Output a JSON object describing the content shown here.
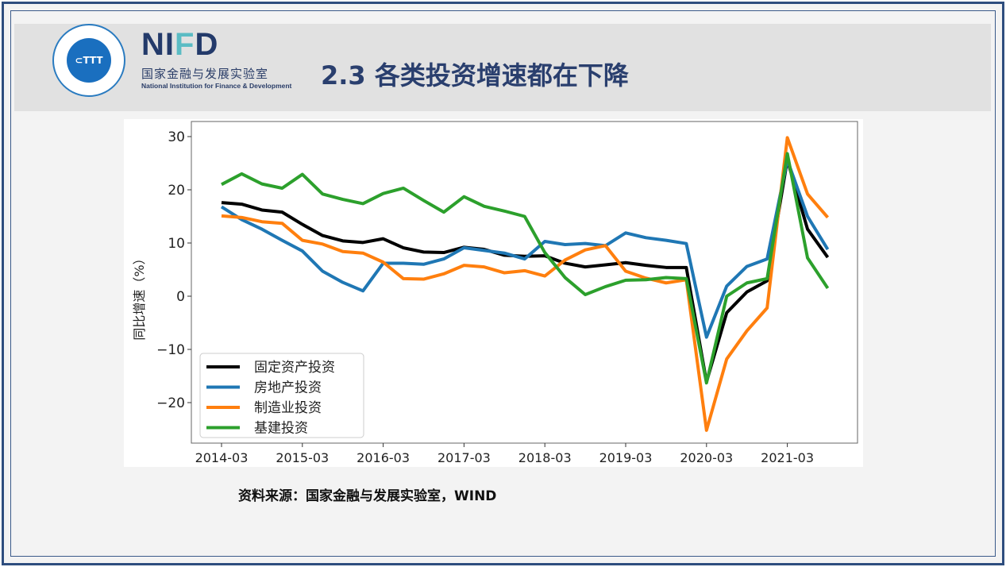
{
  "header": {
    "logo_text": "NIFD",
    "logo_cn": "国家金融与发展实验室",
    "logo_en": "National Institution for Finance & Development",
    "seal_text": "CHINA TOP THINK TANKS · 国家高端智库",
    "title": "2.3  各类投资增速都在下降"
  },
  "source": "资料来源：国家金融与发展实验室，WIND",
  "colors": {
    "fixed": "#000000",
    "realestate": "#1f77b4",
    "manufacturing": "#ff7f0e",
    "infra": "#2ca02c"
  },
  "chart_data": {
    "type": "line",
    "title": "",
    "xlabel": "",
    "ylabel": "同比增速（%）",
    "ylim": [
      -26,
      31
    ],
    "yticks": [
      30,
      20,
      10,
      0,
      -10,
      -20
    ],
    "ytick_labels": [
      "30",
      "20",
      "10",
      "0",
      "−10",
      "−20"
    ],
    "xtick_labels": [
      "2014-03",
      "2015-03",
      "2016-03",
      "2017-03",
      "2018-03",
      "2019-03",
      "2020-03",
      "2021-03"
    ],
    "x_start": "2014-03",
    "frequency": "quarterly",
    "legend_position": "lower-left",
    "series": [
      {
        "name": "固定资产投资",
        "color": "#000000",
        "values": [
          17.6,
          17.3,
          16.2,
          15.8,
          13.5,
          11.4,
          10.4,
          10.1,
          10.8,
          9.1,
          8.3,
          8.2,
          9.2,
          8.8,
          7.7,
          7.5,
          7.6,
          6.2,
          5.5,
          5.9,
          6.3,
          5.8,
          5.4,
          5.4,
          -16.1,
          -3.1,
          0.8,
          2.9,
          25.6,
          12.6,
          7.3
        ]
      },
      {
        "name": "房地产投资",
        "color": "#1f77b4",
        "values": [
          16.8,
          14.4,
          12.6,
          10.5,
          8.5,
          4.7,
          2.6,
          1.0,
          6.2,
          6.2,
          6.0,
          7.0,
          9.1,
          8.6,
          8.1,
          7.0,
          10.3,
          9.7,
          9.9,
          9.5,
          11.9,
          11.0,
          10.5,
          9.9,
          -7.7,
          1.9,
          5.6,
          7.0,
          25.6,
          15.0,
          8.8
        ]
      },
      {
        "name": "制造业投资",
        "color": "#ff7f0e",
        "values": [
          15.1,
          14.8,
          14.0,
          13.7,
          10.5,
          9.8,
          8.4,
          8.1,
          6.4,
          3.3,
          3.2,
          4.2,
          5.8,
          5.5,
          4.4,
          4.8,
          3.8,
          6.8,
          8.7,
          9.5,
          4.7,
          3.4,
          2.5,
          3.1,
          -25.2,
          -11.8,
          -6.5,
          -2.2,
          29.8,
          19.2,
          14.8
        ]
      },
      {
        "name": "基建投资",
        "color": "#2ca02c",
        "values": [
          21.0,
          23.0,
          21.1,
          20.3,
          22.9,
          19.2,
          18.2,
          17.4,
          19.3,
          20.3,
          18.0,
          15.8,
          18.7,
          16.9,
          16.0,
          15.0,
          8.2,
          3.5,
          0.3,
          1.8,
          3.0,
          3.1,
          3.5,
          3.3,
          -16.3,
          0.0,
          2.5,
          3.3,
          26.8,
          7.2,
          1.5
        ]
      }
    ]
  }
}
